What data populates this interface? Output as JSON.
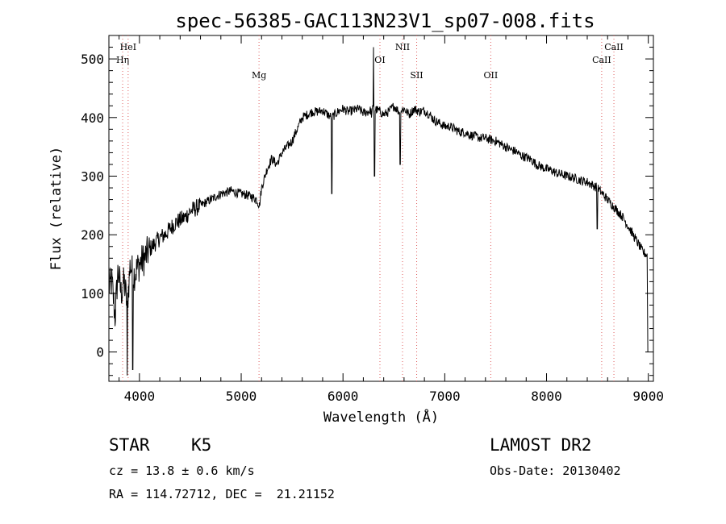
{
  "chart_data": {
    "type": "line",
    "title": "spec-56385-GAC113N23V1_sp07-008.fits",
    "xlabel": "Wavelength (Å)",
    "ylabel": "Flux (relative)",
    "xlim": [
      3700,
      9050
    ],
    "ylim": [
      -50,
      540
    ],
    "xticks": [
      4000,
      5000,
      6000,
      7000,
      8000,
      9000
    ],
    "yticks": [
      0,
      100,
      200,
      300,
      400,
      500
    ],
    "grid": false,
    "spectrum_anchors": {
      "x": [
        3700,
        3730,
        3760,
        3790,
        3820,
        3850,
        3880,
        3910,
        3940,
        3970,
        4000,
        4050,
        4100,
        4150,
        4200,
        4250,
        4300,
        4350,
        4400,
        4450,
        4500,
        4550,
        4600,
        4650,
        4700,
        4750,
        4800,
        4850,
        4900,
        4950,
        5000,
        5050,
        5100,
        5150,
        5180,
        5200,
        5250,
        5300,
        5350,
        5400,
        5450,
        5500,
        5550,
        5600,
        5650,
        5700,
        5750,
        5800,
        5850,
        5890,
        5950,
        6000,
        6050,
        6100,
        6150,
        6200,
        6250,
        6300,
        6350,
        6400,
        6450,
        6500,
        6550,
        6600,
        6650,
        6700,
        6750,
        6800,
        6850,
        6900,
        6950,
        7000,
        7050,
        7100,
        7150,
        7200,
        7250,
        7300,
        7350,
        7400,
        7450,
        7500,
        7550,
        7600,
        7650,
        7700,
        7750,
        7800,
        7850,
        7900,
        7950,
        8000,
        8050,
        8100,
        8150,
        8200,
        8250,
        8300,
        8350,
        8400,
        8450,
        8500,
        8550,
        8600,
        8650,
        8700,
        8750,
        8800,
        8850,
        8900,
        8950,
        8990
      ],
      "y": [
        110,
        120,
        60,
        140,
        100,
        120,
        80,
        150,
        130,
        140,
        150,
        160,
        175,
        185,
        195,
        200,
        210,
        220,
        225,
        230,
        240,
        245,
        250,
        255,
        260,
        265,
        270,
        272,
        275,
        272,
        270,
        268,
        265,
        260,
        250,
        280,
        310,
        330,
        320,
        340,
        350,
        360,
        380,
        400,
        405,
        410,
        410,
        412,
        405,
        400,
        410,
        415,
        410,
        412,
        415,
        408,
        410,
        415,
        412,
        405,
        410,
        420,
        410,
        415,
        405,
        415,
        410,
        412,
        405,
        395,
        390,
        385,
        385,
        380,
        375,
        375,
        370,
        368,
        365,
        365,
        362,
        360,
        355,
        350,
        345,
        342,
        335,
        332,
        328,
        320,
        316,
        312,
        310,
        305,
        303,
        300,
        298,
        295,
        292,
        290,
        285,
        280,
        270,
        260,
        250,
        240,
        230,
        215,
        200,
        185,
        170,
        165
      ]
    },
    "absorption_dips": [
      {
        "x": 3880,
        "y": -40
      },
      {
        "x": 3935,
        "y": -30
      },
      {
        "x": 5890,
        "y": 270
      },
      {
        "x": 6280,
        "y": 400
      },
      {
        "x": 6300,
        "y": 520
      },
      {
        "x": 6310,
        "y": 300
      },
      {
        "x": 6563,
        "y": 320
      },
      {
        "x": 8498,
        "y": 210
      }
    ],
    "spectral_lines": [
      {
        "name": "HeI",
        "x": 3889,
        "row": "high"
      },
      {
        "name": "Hη",
        "x": 3835,
        "row": "mid"
      },
      {
        "name": "Mg",
        "x": 5175,
        "row": "low"
      },
      {
        "name": "OI",
        "x": 6363,
        "row": "mid"
      },
      {
        "name": "NII",
        "x": 6585,
        "row": "high"
      },
      {
        "name": "SII",
        "x": 6724,
        "row": "low"
      },
      {
        "name": "OII",
        "x": 7452,
        "row": "low"
      },
      {
        "name": "CaII",
        "x": 8542,
        "row": "mid"
      },
      {
        "name": "CaII",
        "x": 8662,
        "row": "high"
      }
    ]
  },
  "info": {
    "object_class": "STAR",
    "subclass": "K5",
    "survey": "LAMOST DR2",
    "cz": "cz = 13.8 ± 0.6 km/s",
    "obs_date": "Obs-Date: 20130402",
    "coords": "RA = 114.72712, DEC =  21.21152"
  }
}
